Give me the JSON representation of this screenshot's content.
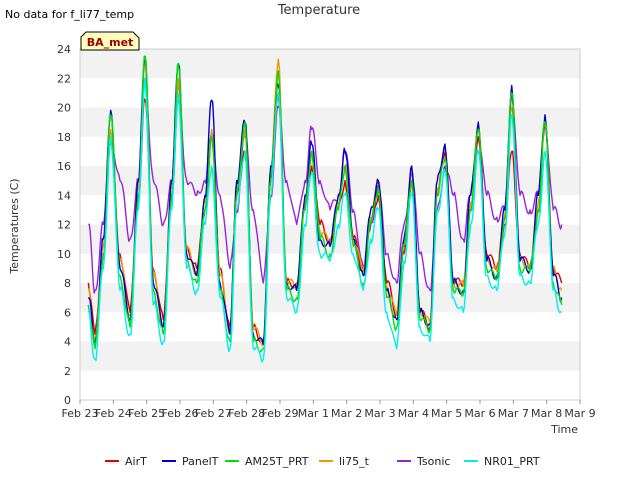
{
  "note": "No data for f_li77_temp",
  "badge": "BA_met",
  "chart_data": {
    "type": "line",
    "title": "Temperature",
    "xlabel": "Time",
    "ylabel": "Temperatures (C)",
    "ylim": [
      0,
      24
    ],
    "yticks": [
      0,
      2,
      4,
      6,
      8,
      10,
      12,
      14,
      16,
      18,
      20,
      22,
      24
    ],
    "xlim": [
      0,
      15
    ],
    "xticks": [
      "Feb 23",
      "Feb 24",
      "Feb 25",
      "Feb 26",
      "Feb 27",
      "Feb 28",
      "Feb 29",
      "Mar 1",
      "Mar 2",
      "Mar 3",
      "Mar 4",
      "Mar 5",
      "Mar 6",
      "Mar 7",
      "Mar 8",
      "Mar 9"
    ],
    "grid": "horizontal bands",
    "legend_position": "bottom",
    "series": [
      {
        "name": "AirT",
        "color": "#dd0000",
        "x": [
          0.25,
          0.45,
          0.7,
          0.92,
          1.2,
          1.5,
          1.75,
          1.95,
          2.2,
          2.5,
          2.75,
          2.95,
          3.2,
          3.5,
          3.75,
          3.95,
          4.2,
          4.5,
          4.7,
          4.95,
          5.2,
          5.5,
          5.72,
          5.95,
          6.2,
          6.5,
          6.75,
          6.95,
          7.2,
          7.5,
          7.75,
          7.95,
          8.2,
          8.5,
          8.72,
          8.95,
          9.2,
          9.5,
          9.72,
          9.95,
          10.2,
          10.5,
          10.72,
          10.95,
          11.2,
          11.5,
          11.72,
          11.95,
          12.2,
          12.5,
          12.75,
          12.95,
          13.2,
          13.5,
          13.75,
          13.95,
          14.2,
          14.45
        ],
        "y": [
          8,
          4.5,
          10,
          17.5,
          10,
          6,
          14,
          20.5,
          9,
          5.5,
          14,
          20.5,
          10.5,
          9,
          13,
          18,
          9,
          5,
          14,
          17,
          5,
          4,
          15,
          21,
          8,
          8,
          13,
          16,
          12,
          11,
          13,
          15,
          11,
          9,
          12,
          14,
          8,
          6,
          10,
          15,
          6,
          5,
          14,
          17,
          8,
          8,
          13,
          18,
          10,
          9,
          12,
          17,
          10,
          9,
          13,
          19,
          9,
          8
        ]
      },
      {
        "name": "PanelT",
        "color": "#0000cc",
        "x": [
          0.25,
          0.45,
          0.7,
          0.92,
          1.2,
          1.5,
          1.75,
          1.95,
          2.2,
          2.5,
          2.75,
          2.95,
          3.2,
          3.5,
          3.75,
          3.95,
          4.2,
          4.5,
          4.7,
          4.95,
          5.2,
          5.5,
          5.72,
          5.95,
          6.2,
          6.5,
          6.75,
          6.95,
          7.2,
          7.5,
          7.75,
          7.95,
          8.2,
          8.5,
          8.72,
          8.95,
          9.2,
          9.5,
          9.72,
          9.95,
          10.2,
          10.5,
          10.72,
          10.95,
          11.2,
          11.5,
          11.72,
          11.95,
          12.2,
          12.5,
          12.75,
          12.95,
          13.2,
          13.5,
          13.75,
          13.95,
          14.2,
          14.45
        ],
        "y": [
          7,
          4,
          11,
          19.8,
          9,
          5.5,
          15,
          23.5,
          8,
          5,
          15,
          23,
          10,
          8.5,
          14,
          20.5,
          8,
          4.5,
          15,
          19,
          4.5,
          3.8,
          16,
          21.5,
          8,
          7.5,
          14,
          17.5,
          11,
          10.5,
          14,
          17,
          11,
          8.5,
          13,
          15,
          7.5,
          5.5,
          11,
          16,
          6,
          5.2,
          15,
          17.5,
          8,
          7.5,
          14,
          19,
          9.5,
          8.5,
          13,
          21.5,
          9.5,
          9,
          14,
          19.5,
          8.5,
          7
        ]
      },
      {
        "name": "AM25T_PRT",
        "color": "#00dd00",
        "x": [
          0.25,
          0.45,
          0.7,
          0.92,
          1.2,
          1.5,
          1.75,
          1.95,
          2.2,
          2.5,
          2.75,
          2.95,
          3.2,
          3.5,
          3.75,
          3.95,
          4.2,
          4.5,
          4.7,
          4.95,
          5.2,
          5.5,
          5.72,
          5.95,
          6.2,
          6.5,
          6.75,
          6.95,
          7.2,
          7.5,
          7.75,
          7.95,
          8.2,
          8.5,
          8.72,
          8.95,
          9.2,
          9.5,
          9.72,
          9.95,
          10.2,
          10.5,
          10.72,
          10.95,
          11.2,
          11.5,
          11.72,
          11.95,
          12.2,
          12.5,
          12.75,
          12.95,
          13.2,
          13.5,
          13.75,
          13.95,
          14.2,
          14.45
        ],
        "y": [
          6.5,
          3.5,
          10,
          19.5,
          8.5,
          5,
          14,
          23.5,
          7.5,
          4.5,
          14,
          23,
          9.5,
          8,
          13,
          18,
          7.5,
          4,
          14,
          19,
          4,
          3.5,
          15,
          22.5,
          7.5,
          7,
          13,
          17,
          11,
          10,
          13,
          16,
          10.5,
          8,
          12,
          14.5,
          7,
          5,
          10.5,
          15,
          5.5,
          4.8,
          14,
          16.5,
          7.5,
          7.2,
          13,
          18.5,
          9,
          8.2,
          12.5,
          21,
          9,
          8.8,
          13,
          19,
          8,
          6.5
        ]
      },
      {
        "name": "li75_t",
        "color": "#ee9900",
        "x": [
          0.25,
          0.45,
          0.7,
          0.92,
          1.2,
          1.5,
          1.75,
          1.95,
          2.2,
          2.5,
          2.75,
          2.95,
          3.2,
          3.5,
          3.75,
          3.95,
          4.2,
          4.5,
          4.7,
          4.95,
          5.2,
          5.5,
          5.72,
          5.95,
          6.2,
          6.5,
          6.75,
          6.95,
          7.2,
          7.5,
          7.75,
          7.95,
          8.2,
          8.5,
          8.72,
          8.95,
          9.2,
          9.5,
          9.72,
          9.95,
          10.2,
          10.5,
          10.72,
          10.95,
          11.2,
          11.5,
          11.72,
          11.95,
          12.2,
          12.5,
          12.75,
          12.95,
          13.2,
          13.5,
          13.75,
          13.95,
          14.2,
          14.45
        ],
        "y": [
          7.5,
          4.2,
          10.5,
          18.5,
          9.5,
          5.8,
          14.5,
          23.5,
          8.5,
          5.2,
          14.5,
          22,
          10.2,
          8.8,
          13.5,
          18.5,
          8.5,
          4.8,
          14.5,
          18.5,
          4.8,
          4,
          15.5,
          23.3,
          8,
          7.8,
          13.5,
          17,
          11.5,
          10.8,
          13.5,
          16,
          11,
          8.8,
          12.5,
          14.8,
          7.8,
          5.8,
          10.8,
          15.5,
          6.2,
          5.2,
          14.5,
          17,
          8,
          7.8,
          13.5,
          18.5,
          9.8,
          8.8,
          12.8,
          20,
          9.8,
          9,
          13.5,
          19,
          9,
          7.5
        ]
      },
      {
        "name": "Tsonic",
        "color": "#9922dd",
        "x": [
          0.25,
          0.45,
          0.7,
          0.92,
          1.2,
          1.5,
          1.75,
          1.95,
          2.2,
          2.5,
          2.75,
          2.95,
          3.2,
          3.5,
          3.75,
          3.95,
          4.2,
          4.5,
          4.7,
          4.95,
          5.2,
          5.5,
          5.72,
          5.95,
          6.2,
          6.5,
          6.75,
          6.95,
          7.2,
          7.5,
          7.75,
          7.95,
          8.2,
          8.5,
          8.72,
          8.95,
          9.2,
          9.5,
          9.72,
          9.95,
          10.2,
          10.5,
          10.72,
          10.95,
          11.2,
          11.5,
          11.72,
          11.95,
          12.2,
          12.5,
          12.75,
          12.95,
          13.2,
          13.5,
          13.75,
          13.95,
          14.2,
          14.45
        ],
        "y": [
          12,
          7.5,
          12,
          18,
          15,
          11,
          15,
          22,
          15,
          12,
          15,
          21.5,
          15,
          14,
          15,
          18,
          14,
          9,
          13,
          18,
          13,
          8,
          14,
          20,
          15,
          12,
          15,
          18.5,
          15,
          13,
          14,
          17,
          13,
          9,
          12,
          14.5,
          10,
          8,
          12,
          15.5,
          10,
          7.5,
          13,
          16,
          14,
          11,
          14,
          18,
          14,
          12.5,
          13,
          21,
          14,
          13,
          14,
          19,
          13,
          12
        ]
      },
      {
        "name": "NR01_PRT",
        "color": "#00eeee",
        "x": [
          0.25,
          0.45,
          0.7,
          0.92,
          1.2,
          1.5,
          1.75,
          1.95,
          2.2,
          2.5,
          2.75,
          2.95,
          3.2,
          3.5,
          3.75,
          3.95,
          4.2,
          4.5,
          4.7,
          4.95,
          5.2,
          5.5,
          5.72,
          5.95,
          6.2,
          6.5,
          6.75,
          6.95,
          7.2,
          7.5,
          7.75,
          7.95,
          8.2,
          8.5,
          8.72,
          8.95,
          9.2,
          9.5,
          9.72,
          9.95,
          10.2,
          10.5,
          10.72,
          10.95,
          11.2,
          11.5,
          11.72,
          11.95,
          12.2,
          12.5,
          12.75,
          12.95,
          13.2,
          13.5,
          13.75,
          13.95,
          14.2,
          14.45
        ],
        "y": [
          6,
          2.8,
          9,
          18,
          7.5,
          4.5,
          13,
          22,
          6.5,
          4,
          13,
          21,
          9,
          7.5,
          12,
          16,
          7,
          3.5,
          13,
          17,
          3.5,
          2.8,
          14,
          21,
          7,
          6,
          12,
          15.5,
          10,
          9.5,
          12,
          14,
          10,
          7.5,
          11,
          13,
          6,
          3.5,
          9.5,
          14,
          5,
          4,
          13,
          15.5,
          7,
          6,
          12,
          17,
          8.5,
          7.5,
          11.5,
          19.5,
          8.5,
          8,
          12,
          17,
          7.5,
          6
        ]
      }
    ]
  }
}
